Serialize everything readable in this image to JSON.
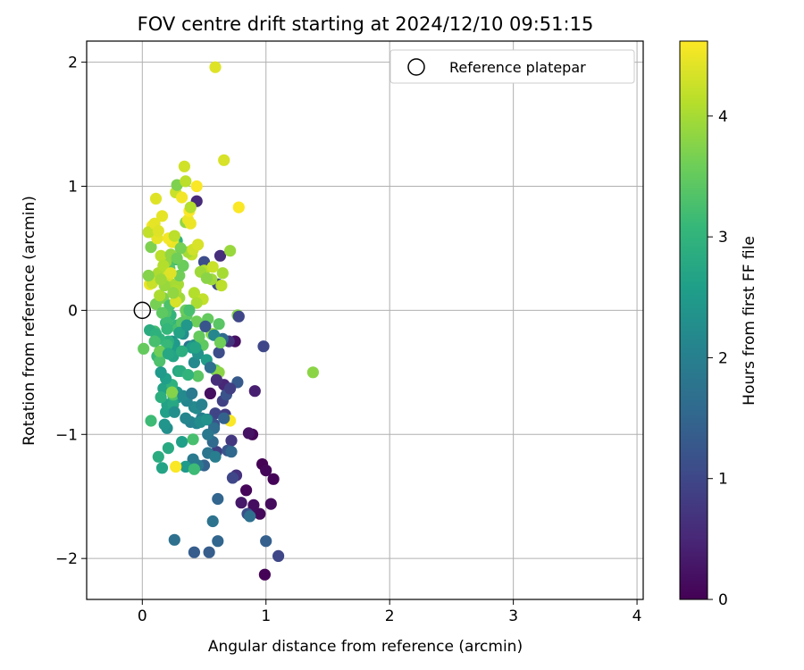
{
  "chart_data": {
    "type": "scatter",
    "title": "FOV centre drift starting at 2024/12/10 09:51:15",
    "xlabel": "Angular distance from reference (arcmin)",
    "ylabel": "Rotation from reference (arcmin)",
    "xlim": [
      -0.45,
      4.05
    ],
    "ylim": [
      -2.33,
      2.17
    ],
    "xticks": [
      0,
      1,
      2,
      3,
      4
    ],
    "yticks": [
      -2,
      -1,
      0,
      1,
      2
    ],
    "xtick_labels": [
      "0",
      "1",
      "2",
      "3",
      "4"
    ],
    "ytick_labels": [
      "−2",
      "−1",
      "0",
      "1",
      "2"
    ],
    "grid": true,
    "legend": {
      "placement": "top-right",
      "entries": [
        {
          "label": "Reference platepar",
          "marker": "open-circle",
          "x": 0,
          "y": 0
        }
      ]
    },
    "colorbar": {
      "label": "Hours from first FF file",
      "colormap": "viridis",
      "range": [
        0,
        4.62
      ],
      "ticks": [
        0,
        1,
        2,
        3,
        4
      ],
      "tick_labels": [
        "0",
        "1",
        "2",
        "3",
        "4"
      ]
    },
    "colormap_stops": [
      "#440154",
      "#482878",
      "#3e4989",
      "#31688e",
      "#26828e",
      "#1f9e89",
      "#35b779",
      "#6ece58",
      "#b5de2b",
      "#fde725"
    ],
    "points": [
      [
        0.97,
        -1.24,
        0.02
      ],
      [
        1.06,
        -1.36,
        0.04
      ],
      [
        1.0,
        -1.29,
        0.06
      ],
      [
        0.99,
        -2.13,
        0.03
      ],
      [
        0.89,
        -1.0,
        0.05
      ],
      [
        0.84,
        -1.45,
        0.07
      ],
      [
        0.86,
        -1.64,
        0.09
      ],
      [
        0.95,
        -1.64,
        0.1
      ],
      [
        0.88,
        -1.63,
        0.12
      ],
      [
        1.04,
        -1.56,
        0.14
      ],
      [
        0.9,
        -1.57,
        0.16
      ],
      [
        0.55,
        -0.67,
        0.18
      ],
      [
        0.75,
        -0.25,
        0.2
      ],
      [
        0.86,
        -0.99,
        0.22
      ],
      [
        0.8,
        -1.55,
        0.3
      ],
      [
        0.91,
        -0.65,
        0.4
      ],
      [
        0.66,
        -0.6,
        0.5
      ],
      [
        0.44,
        0.88,
        0.55
      ],
      [
        0.63,
        0.44,
        0.6
      ],
      [
        0.76,
        -1.33,
        0.65
      ],
      [
        0.7,
        -0.25,
        0.7
      ],
      [
        0.72,
        -1.05,
        0.75
      ],
      [
        0.67,
        -0.84,
        0.8
      ],
      [
        0.6,
        -1.14,
        0.85
      ],
      [
        0.65,
        -0.73,
        0.9
      ],
      [
        0.59,
        -0.83,
        0.95
      ],
      [
        0.73,
        -1.35,
        1.0
      ],
      [
        0.98,
        -0.29,
        1.0
      ],
      [
        1.1,
        -1.98,
        1.0
      ],
      [
        0.61,
        0.21,
        1.05
      ],
      [
        0.5,
        0.39,
        1.1
      ],
      [
        0.62,
        -0.34,
        1.1
      ],
      [
        0.85,
        -1.64,
        1.15
      ],
      [
        0.68,
        -0.68,
        1.2
      ],
      [
        0.58,
        -0.92,
        1.2
      ],
      [
        0.69,
        -1.13,
        1.25
      ],
      [
        0.77,
        -0.58,
        1.3
      ],
      [
        0.53,
        -0.88,
        1.3
      ],
      [
        0.42,
        -1.95,
        1.35
      ],
      [
        0.54,
        -1.95,
        1.35
      ],
      [
        1.0,
        -1.86,
        1.4
      ],
      [
        0.64,
        -0.25,
        1.4
      ],
      [
        0.5,
        -1.25,
        1.45
      ],
      [
        0.61,
        -1.52,
        1.5
      ],
      [
        0.61,
        -1.86,
        1.5
      ],
      [
        0.72,
        -1.14,
        1.55
      ],
      [
        0.57,
        -1.06,
        1.6
      ],
      [
        0.65,
        -0.23,
        1.6
      ],
      [
        0.58,
        -0.95,
        1.65
      ],
      [
        0.26,
        -1.85,
        1.7
      ],
      [
        0.87,
        -1.66,
        1.7
      ],
      [
        0.57,
        -1.7,
        1.75
      ],
      [
        0.53,
        -1.15,
        1.8
      ],
      [
        0.38,
        -0.29,
        1.8
      ],
      [
        0.53,
        -1.0,
        1.85
      ],
      [
        0.45,
        -1.25,
        1.85
      ],
      [
        0.41,
        -1.2,
        1.9
      ],
      [
        0.59,
        -1.18,
        1.95
      ],
      [
        0.22,
        -0.27,
        2.0
      ],
      [
        0.48,
        -0.87,
        2.0
      ],
      [
        0.39,
        -0.9,
        2.05
      ],
      [
        0.44,
        -0.91,
        2.1
      ],
      [
        0.36,
        -0.73,
        2.1
      ],
      [
        0.42,
        -0.78,
        2.15
      ],
      [
        0.35,
        -0.87,
        2.15
      ],
      [
        0.42,
        -0.42,
        2.2
      ],
      [
        0.44,
        -0.79,
        2.2
      ],
      [
        0.42,
        -0.28,
        2.25
      ],
      [
        0.47,
        -0.9,
        2.25
      ],
      [
        0.33,
        -0.19,
        2.3
      ],
      [
        0.2,
        -0.95,
        2.3
      ],
      [
        0.24,
        -0.25,
        2.35
      ],
      [
        0.52,
        -0.88,
        2.35
      ],
      [
        0.28,
        -0.66,
        2.4
      ],
      [
        0.18,
        -0.92,
        2.4
      ],
      [
        0.22,
        -0.78,
        2.45
      ],
      [
        0.29,
        -0.7,
        2.45
      ],
      [
        0.26,
        -0.27,
        2.5
      ],
      [
        0.35,
        -1.26,
        2.5
      ],
      [
        0.23,
        -0.31,
        2.55
      ],
      [
        0.4,
        -0.3,
        2.55
      ],
      [
        0.19,
        -0.82,
        2.6
      ],
      [
        0.32,
        -1.06,
        2.6
      ],
      [
        0.2,
        -0.76,
        2.65
      ],
      [
        0.17,
        -0.63,
        2.65
      ],
      [
        0.25,
        -0.37,
        2.7
      ],
      [
        0.16,
        -1.27,
        2.7
      ],
      [
        0.29,
        -0.49,
        2.75
      ],
      [
        0.25,
        -0.76,
        2.75
      ],
      [
        0.21,
        -1.11,
        2.8
      ],
      [
        0.25,
        -0.69,
        2.8
      ],
      [
        0.31,
        -0.49,
        2.85
      ],
      [
        0.13,
        -1.18,
        2.85
      ],
      [
        0.21,
        -0.25,
        2.9
      ],
      [
        0.15,
        -0.7,
        2.9
      ],
      [
        0.24,
        -0.6,
        2.95
      ],
      [
        0.28,
        0.56,
        2.95
      ],
      [
        0.14,
        -0.23,
        3.0
      ],
      [
        0.23,
        -0.04,
        3.0
      ],
      [
        0.28,
        -0.12,
        3.05
      ],
      [
        0.19,
        -0.1,
        3.05
      ],
      [
        0.12,
        -0.37,
        3.1
      ],
      [
        0.2,
        -0.28,
        3.1
      ],
      [
        0.07,
        -0.89,
        3.15
      ],
      [
        0.42,
        -1.28,
        3.15
      ],
      [
        0.27,
        0.41,
        3.2
      ],
      [
        0.1,
        -0.17,
        3.2
      ],
      [
        0.29,
        -0.15,
        3.25
      ],
      [
        0.41,
        -1.04,
        3.25
      ],
      [
        0.14,
        -0.41,
        3.3
      ],
      [
        0.25,
        -0.68,
        3.3
      ],
      [
        0.19,
        -0.02,
        3.35
      ],
      [
        0.22,
        0.34,
        3.35
      ],
      [
        0.32,
        -0.1,
        3.4
      ],
      [
        0.45,
        -0.53,
        3.4
      ],
      [
        0.49,
        -0.28,
        3.45
      ],
      [
        0.36,
        -0.04,
        3.45
      ],
      [
        0.01,
        -0.31,
        3.5
      ],
      [
        0.46,
        -0.21,
        3.5
      ],
      [
        0.35,
        0.0,
        3.55
      ],
      [
        0.59,
        -0.48,
        3.55
      ],
      [
        0.44,
        -0.09,
        3.6
      ],
      [
        0.14,
        -0.33,
        3.6
      ],
      [
        0.11,
        0.05,
        3.65
      ],
      [
        0.56,
        -0.19,
        3.65
      ],
      [
        0.07,
        0.51,
        3.7
      ],
      [
        0.17,
        0.1,
        3.7
      ],
      [
        0.24,
        -0.66,
        3.75
      ],
      [
        0.77,
        -0.04,
        3.75
      ],
      [
        1.38,
        -0.5,
        3.8
      ],
      [
        0.62,
        -0.5,
        3.8
      ],
      [
        0.35,
        0.71,
        3.85
      ],
      [
        0.19,
        0.39,
        3.85
      ],
      [
        0.71,
        0.48,
        3.9
      ],
      [
        0.57,
        -0.19,
        3.9
      ],
      [
        0.3,
        0.1,
        3.95
      ],
      [
        0.56,
        0.25,
        3.95
      ],
      [
        0.29,
        0.21,
        4.0
      ],
      [
        0.24,
        0.21,
        4.0
      ],
      [
        0.13,
        0.3,
        4.05
      ],
      [
        0.27,
        0.16,
        4.05
      ],
      [
        0.42,
        0.14,
        4.1
      ],
      [
        0.5,
        0.32,
        4.1
      ],
      [
        0.64,
        0.2,
        4.15
      ],
      [
        0.15,
        0.44,
        4.15
      ],
      [
        0.4,
        0.45,
        4.2
      ],
      [
        0.49,
        0.09,
        4.2
      ],
      [
        0.27,
        0.95,
        4.25
      ],
      [
        0.25,
        0.55,
        4.25
      ],
      [
        0.21,
        0.28,
        4.3
      ],
      [
        0.34,
        1.16,
        4.3
      ],
      [
        0.66,
        1.21,
        4.35
      ],
      [
        0.59,
        1.96,
        4.4
      ],
      [
        0.11,
        0.9,
        4.4
      ],
      [
        0.12,
        0.58,
        4.45
      ],
      [
        0.16,
        0.76,
        4.45
      ],
      [
        0.24,
        0.55,
        4.5
      ],
      [
        0.37,
        0.73,
        4.5
      ],
      [
        0.08,
        0.68,
        4.55
      ],
      [
        0.32,
        0.91,
        4.55
      ],
      [
        0.27,
        -1.26,
        4.6
      ],
      [
        0.44,
        1.0,
        4.6
      ],
      [
        0.78,
        0.83,
        4.6
      ],
      [
        0.71,
        -0.89,
        4.6
      ],
      [
        0.06,
        0.21,
        4.5
      ],
      [
        0.21,
        0.58,
        4.55
      ],
      [
        0.38,
        0.8,
        4.6
      ],
      [
        0.05,
        0.63,
        4.2
      ],
      [
        0.1,
        0.7,
        4.45
      ],
      [
        0.3,
        0.28,
        3.6
      ],
      [
        0.22,
        0.04,
        3.3
      ],
      [
        0.16,
        -0.02,
        3.45
      ],
      [
        0.08,
        0.22,
        4.25
      ],
      [
        0.14,
        0.12,
        4.05
      ],
      [
        0.26,
        0.6,
        4.15
      ],
      [
        0.37,
        0.47,
        4.0
      ],
      [
        0.18,
        0.2,
        3.9
      ],
      [
        0.27,
        0.07,
        4.35
      ],
      [
        0.05,
        0.28,
        3.75
      ],
      [
        0.33,
        0.36,
        3.55
      ],
      [
        0.2,
        -0.1,
        3.15
      ],
      [
        0.41,
        0.49,
        4.3
      ],
      [
        0.23,
        0.45,
        3.85
      ],
      [
        0.13,
        0.64,
        4.4
      ],
      [
        0.39,
        0.7,
        4.5
      ],
      [
        0.47,
        0.31,
        3.95
      ],
      [
        0.28,
        1.01,
        3.7
      ],
      [
        0.35,
        1.04,
        4.15
      ],
      [
        0.57,
        0.35,
        4.25
      ],
      [
        0.44,
        0.06,
        4.05
      ],
      [
        0.53,
        -0.07,
        3.5
      ],
      [
        0.62,
        -0.11,
        3.4
      ],
      [
        0.17,
        0.36,
        4.1
      ],
      [
        0.25,
        0.14,
        3.85
      ],
      [
        0.31,
        0.5,
        3.65
      ],
      [
        0.38,
        0.0,
        3.25
      ],
      [
        0.15,
        0.25,
        3.95
      ],
      [
        0.06,
        -0.16,
        2.85
      ],
      [
        0.11,
        -0.19,
        2.95
      ],
      [
        0.21,
        -0.35,
        2.75
      ],
      [
        0.3,
        -0.18,
        2.65
      ],
      [
        0.36,
        -0.12,
        2.45
      ],
      [
        0.45,
        -0.35,
        2.35
      ],
      [
        0.52,
        -0.4,
        2.55
      ],
      [
        0.58,
        -0.2,
        2.15
      ],
      [
        0.63,
        -0.26,
        3.6
      ],
      [
        0.65,
        0.3,
        4.0
      ],
      [
        0.39,
        0.83,
        4.1
      ],
      [
        0.45,
        0.53,
        4.35
      ],
      [
        0.52,
        0.26,
        3.8
      ],
      [
        0.23,
        0.3,
        4.4
      ],
      [
        0.28,
        0.42,
        3.6
      ],
      [
        0.19,
        -0.55,
        2.6
      ],
      [
        0.26,
        -0.82,
        2.3
      ],
      [
        0.33,
        -0.69,
        2.2
      ],
      [
        0.15,
        -0.5,
        2.5
      ],
      [
        0.4,
        -0.67,
        1.9
      ],
      [
        0.55,
        -0.46,
        1.7
      ],
      [
        0.66,
        -0.87,
        1.45
      ],
      [
        0.51,
        -0.13,
        1.25
      ],
      [
        0.71,
        -0.63,
        0.85
      ],
      [
        0.78,
        -0.05,
        1.0
      ],
      [
        0.6,
        -0.56,
        0.6
      ],
      [
        0.48,
        -0.76,
        2.05
      ],
      [
        0.43,
        -0.3,
        2.7
      ],
      [
        0.37,
        -0.52,
        3.0
      ],
      [
        0.32,
        -0.33,
        2.9
      ],
      [
        0.2,
        -0.15,
        3.05
      ],
      [
        0.1,
        -0.25,
        3.25
      ]
    ]
  }
}
